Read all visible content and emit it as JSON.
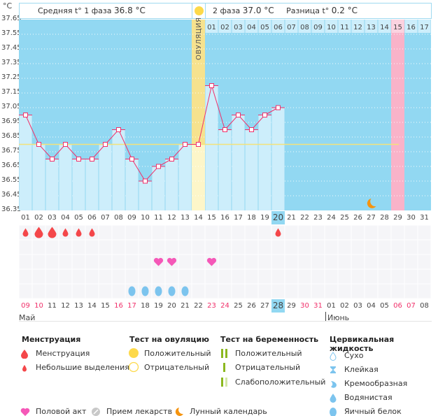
{
  "header": {
    "phase1_label": "Средняя t° 1 фаза",
    "phase1_value": "36.8 °C",
    "phase2_label": "2 фаза",
    "phase2_value": "37.0 °C",
    "diff_label": "Разница t°",
    "diff_value": "0.2 °C"
  },
  "y_unit": "°C",
  "chart_data": {
    "type": "line",
    "ylim": [
      36.35,
      37.65
    ],
    "y_ticks": [
      "37.65",
      "37.55",
      "37.45",
      "37.35",
      "37.25",
      "37.15",
      "37.05",
      "36.95",
      "36.85",
      "36.75",
      "36.65",
      "36.55",
      "36.45",
      "36.35"
    ],
    "cycle_days": [
      "01",
      "02",
      "03",
      "04",
      "05",
      "06",
      "07",
      "08",
      "09",
      "10",
      "11",
      "12",
      "13",
      "14",
      "15",
      "16",
      "17",
      "18",
      "19",
      "20",
      "21",
      "22",
      "23",
      "24",
      "25",
      "26",
      "27",
      "28",
      "29",
      "30",
      "31"
    ],
    "temperatures": [
      37.0,
      36.8,
      36.7,
      36.8,
      36.7,
      36.7,
      36.8,
      36.9,
      36.7,
      36.55,
      36.65,
      36.7,
      36.8,
      36.8,
      37.2,
      36.9,
      37.0,
      36.9,
      37.0,
      37.05
    ],
    "coverline": 36.8,
    "ovulation_day": 14,
    "ovulation_label": "ОВУЛЯЦИЯ",
    "luteal_day_labels": [
      "01",
      "02",
      "03",
      "04",
      "05",
      "06",
      "07",
      "08",
      "09",
      "10",
      "11",
      "12",
      "13",
      "14",
      "15",
      "16",
      "17"
    ],
    "expected_period_day": 29,
    "today_day": 20,
    "moon_day": 27,
    "grid": true
  },
  "colors": {
    "plot_bg": "#92d8f2",
    "bar": "#cdeefb",
    "line": "#f0306a",
    "ovulation": "#f6e28e",
    "period": "#f9b3c9",
    "today": "#92d8f2"
  },
  "markers": {
    "menstruation": [
      {
        "day": 1,
        "size": "small"
      },
      {
        "day": 2,
        "size": "large"
      },
      {
        "day": 3,
        "size": "large"
      },
      {
        "day": 4,
        "size": "small"
      },
      {
        "day": 5,
        "size": "small"
      },
      {
        "day": 6,
        "size": "small"
      },
      {
        "day": 20,
        "size": "small"
      }
    ],
    "intercourse": [
      11,
      12,
      15
    ],
    "egg_white": [
      9,
      10,
      11,
      12,
      13
    ]
  },
  "dates": [
    {
      "label": "09",
      "weekend": true
    },
    {
      "label": "10",
      "weekend": true
    },
    {
      "label": "11"
    },
    {
      "label": "12"
    },
    {
      "label": "13"
    },
    {
      "label": "14"
    },
    {
      "label": "15"
    },
    {
      "label": "16",
      "weekend": true
    },
    {
      "label": "17",
      "weekend": true
    },
    {
      "label": "18"
    },
    {
      "label": "19"
    },
    {
      "label": "20"
    },
    {
      "label": "21"
    },
    {
      "label": "22"
    },
    {
      "label": "23",
      "weekend": true
    },
    {
      "label": "24",
      "weekend": true
    },
    {
      "label": "25"
    },
    {
      "label": "26"
    },
    {
      "label": "27"
    },
    {
      "label": "28"
    },
    {
      "label": "29"
    },
    {
      "label": "30",
      "weekend": true
    },
    {
      "label": "31",
      "weekend": true
    },
    {
      "label": "01"
    },
    {
      "label": "02"
    },
    {
      "label": "03"
    },
    {
      "label": "04"
    },
    {
      "label": "05"
    },
    {
      "label": "06",
      "weekend": true
    },
    {
      "label": "07",
      "weekend": true
    },
    {
      "label": "08"
    }
  ],
  "months": {
    "may": "Май",
    "june": "Июнь"
  },
  "legend": {
    "menstruation": {
      "title": "Менструация",
      "items": [
        "Менструация",
        "Небольшие выделения"
      ]
    },
    "ovulation_test": {
      "title": "Тест на овуляцию",
      "items": [
        "Положительный",
        "Отрицательный"
      ]
    },
    "pregnancy_test": {
      "title": "Тест на беременность",
      "items": [
        "Положительный",
        "Отрицательный",
        "Слабоположительный"
      ]
    },
    "cervical": {
      "title": "Цервикальная жидкость",
      "items": [
        "Сухо",
        "Клейкая",
        "Кремообразная",
        "Водянистая",
        "Яичный белок"
      ]
    },
    "other": [
      "Половой акт",
      "Прием лекарств",
      "Лунный календарь"
    ]
  }
}
